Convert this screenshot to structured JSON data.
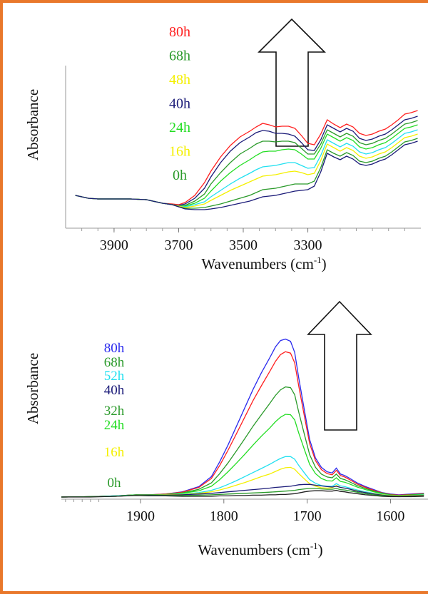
{
  "colors": {
    "border": "#e9782b",
    "red": "#ff2020",
    "green": "#2a9a2a",
    "yellow": "#f4f000",
    "navy": "#1a1a78",
    "lime": "#22dd22",
    "blue": "#2a2aee",
    "cyan": "#22e0f0",
    "dark": "#222222"
  },
  "chart_data": [
    {
      "type": "line",
      "ylabel": "Absorbance",
      "xlabel": "Wavenumbers (cm",
      "xlabel_sup": "-1",
      "xlabel_close": ")",
      "x_reversed": true,
      "xlim": [
        4050,
        2950
      ],
      "x_ticks": [
        3900,
        3700,
        3500,
        3300
      ],
      "x_tick_labels": [
        "3900",
        "3700",
        "3500",
        "3300"
      ],
      "legend": [
        {
          "label": "80h",
          "color": "#ff2020"
        },
        {
          "label": "68h",
          "color": "#2a9a2a"
        },
        {
          "label": "48h",
          "color": "#f4f000"
        },
        {
          "label": "40h",
          "color": "#1a1a78"
        },
        {
          "label": "24h",
          "color": "#22dd22"
        },
        {
          "label": "16h",
          "color": "#f4f000"
        },
        {
          "label": "0h",
          "color": "#2a9a2a"
        }
      ],
      "arrow": "up",
      "x": [
        4020,
        3980,
        3950,
        3900,
        3850,
        3800,
        3780,
        3750,
        3720,
        3700,
        3680,
        3650,
        3620,
        3600,
        3570,
        3540,
        3510,
        3480,
        3460,
        3440,
        3420,
        3400,
        3380,
        3360,
        3340,
        3320,
        3300,
        3280,
        3260,
        3240,
        3220,
        3200,
        3180,
        3160,
        3140,
        3120,
        3100,
        3080,
        3060,
        3040,
        3020,
        3000,
        2980,
        2960
      ],
      "series": [
        {
          "color": "#ff2020",
          "values": [
            0.66,
            0.62,
            0.61,
            0.61,
            0.61,
            0.6,
            0.58,
            0.55,
            0.54,
            0.53,
            0.56,
            0.66,
            0.84,
            1.0,
            1.2,
            1.36,
            1.48,
            1.56,
            1.62,
            1.67,
            1.65,
            1.62,
            1.63,
            1.63,
            1.6,
            1.5,
            1.39,
            1.37,
            1.52,
            1.72,
            1.66,
            1.61,
            1.66,
            1.62,
            1.53,
            1.5,
            1.52,
            1.56,
            1.59,
            1.65,
            1.72,
            1.8,
            1.82,
            1.85
          ]
        },
        {
          "color": "#1a1a78",
          "values": [
            0.66,
            0.62,
            0.61,
            0.61,
            0.61,
            0.6,
            0.58,
            0.55,
            0.53,
            0.52,
            0.54,
            0.62,
            0.76,
            0.92,
            1.12,
            1.28,
            1.4,
            1.48,
            1.54,
            1.57,
            1.56,
            1.53,
            1.53,
            1.52,
            1.49,
            1.4,
            1.3,
            1.29,
            1.44,
            1.65,
            1.6,
            1.55,
            1.6,
            1.56,
            1.46,
            1.43,
            1.45,
            1.49,
            1.52,
            1.58,
            1.65,
            1.72,
            1.74,
            1.77
          ]
        },
        {
          "color": "#2a9a2a",
          "values": [
            0.66,
            0.62,
            0.61,
            0.61,
            0.61,
            0.6,
            0.58,
            0.55,
            0.53,
            0.51,
            0.52,
            0.58,
            0.68,
            0.82,
            0.98,
            1.12,
            1.24,
            1.32,
            1.38,
            1.42,
            1.42,
            1.41,
            1.42,
            1.42,
            1.4,
            1.32,
            1.24,
            1.24,
            1.38,
            1.58,
            1.53,
            1.48,
            1.53,
            1.49,
            1.4,
            1.37,
            1.39,
            1.43,
            1.46,
            1.52,
            1.59,
            1.66,
            1.68,
            1.71
          ]
        },
        {
          "color": "#22dd22",
          "values": [
            0.66,
            0.62,
            0.61,
            0.61,
            0.61,
            0.6,
            0.58,
            0.55,
            0.53,
            0.51,
            0.51,
            0.55,
            0.62,
            0.72,
            0.86,
            0.98,
            1.08,
            1.16,
            1.22,
            1.27,
            1.28,
            1.28,
            1.3,
            1.31,
            1.3,
            1.24,
            1.17,
            1.17,
            1.32,
            1.52,
            1.47,
            1.42,
            1.47,
            1.43,
            1.34,
            1.31,
            1.33,
            1.37,
            1.4,
            1.46,
            1.53,
            1.6,
            1.62,
            1.65
          ]
        },
        {
          "color": "#22e0f0",
          "values": [
            0.66,
            0.62,
            0.61,
            0.61,
            0.61,
            0.6,
            0.58,
            0.55,
            0.53,
            0.51,
            0.5,
            0.53,
            0.57,
            0.64,
            0.73,
            0.82,
            0.9,
            0.97,
            1.02,
            1.06,
            1.07,
            1.08,
            1.1,
            1.12,
            1.12,
            1.08,
            1.04,
            1.05,
            1.22,
            1.44,
            1.39,
            1.34,
            1.39,
            1.35,
            1.27,
            1.24,
            1.26,
            1.3,
            1.33,
            1.39,
            1.46,
            1.53,
            1.55,
            1.58
          ]
        },
        {
          "color": "#f4f000",
          "values": [
            0.66,
            0.62,
            0.61,
            0.61,
            0.61,
            0.6,
            0.58,
            0.55,
            0.53,
            0.51,
            0.49,
            0.51,
            0.54,
            0.59,
            0.66,
            0.73,
            0.79,
            0.85,
            0.89,
            0.93,
            0.94,
            0.95,
            0.97,
            0.99,
            1.0,
            0.98,
            0.95,
            0.97,
            1.15,
            1.38,
            1.33,
            1.28,
            1.33,
            1.29,
            1.21,
            1.18,
            1.2,
            1.24,
            1.27,
            1.33,
            1.4,
            1.47,
            1.49,
            1.52
          ]
        },
        {
          "color": "#2a9a2a",
          "values": [
            0.66,
            0.62,
            0.61,
            0.61,
            0.61,
            0.6,
            0.58,
            0.55,
            0.53,
            0.5,
            0.48,
            0.48,
            0.49,
            0.51,
            0.54,
            0.58,
            0.62,
            0.66,
            0.7,
            0.74,
            0.75,
            0.76,
            0.78,
            0.8,
            0.82,
            0.82,
            0.82,
            0.86,
            1.05,
            1.3,
            1.25,
            1.21,
            1.26,
            1.22,
            1.14,
            1.12,
            1.14,
            1.18,
            1.21,
            1.27,
            1.34,
            1.41,
            1.43,
            1.46
          ]
        },
        {
          "color": "#1a1a78",
          "values": [
            0.66,
            0.62,
            0.61,
            0.61,
            0.61,
            0.6,
            0.58,
            0.55,
            0.53,
            0.5,
            0.47,
            0.46,
            0.46,
            0.47,
            0.49,
            0.52,
            0.55,
            0.58,
            0.61,
            0.64,
            0.65,
            0.66,
            0.68,
            0.7,
            0.72,
            0.73,
            0.74,
            0.79,
            0.99,
            1.25,
            1.2,
            1.16,
            1.21,
            1.17,
            1.1,
            1.08,
            1.1,
            1.14,
            1.17,
            1.23,
            1.3,
            1.37,
            1.39,
            1.42
          ]
        }
      ]
    },
    {
      "type": "line",
      "ylabel": "Absorbance",
      "xlabel": "Wavenumbers (cm",
      "xlabel_sup": "-1",
      "xlabel_close": ")",
      "x_reversed": true,
      "xlim": [
        1995,
        1555
      ],
      "x_ticks": [
        1900,
        1800,
        1700,
        1600
      ],
      "x_tick_labels": [
        "1900",
        "1800",
        "1700",
        "1600"
      ],
      "legend": [
        {
          "label": "80h",
          "color": "#2a2aee"
        },
        {
          "label": "68h",
          "color": "#2a9a2a"
        },
        {
          "label": "52h",
          "color": "#22e0f0"
        },
        {
          "label": "40h",
          "color": "#1a1a78"
        },
        {
          "label": "32h",
          "color": "#2a9a2a"
        },
        {
          "label": "24h",
          "color": "#22dd22"
        },
        {
          "label": "16h",
          "color": "#f4f000"
        },
        {
          "label": "0h",
          "color": "#2a9a2a"
        }
      ],
      "arrow": "up",
      "x": [
        1995,
        1960,
        1930,
        1905,
        1890,
        1870,
        1850,
        1830,
        1815,
        1805,
        1795,
        1785,
        1775,
        1765,
        1755,
        1745,
        1738,
        1732,
        1726,
        1720,
        1715,
        1710,
        1703,
        1697,
        1690,
        1683,
        1676,
        1670,
        1665,
        1660,
        1655,
        1650,
        1640,
        1630,
        1620,
        1610,
        1600,
        1590,
        1575,
        1560
      ],
      "series": [
        {
          "color": "#2a2aee",
          "values": [
            0.0,
            0.01,
            0.03,
            0.06,
            0.06,
            0.08,
            0.14,
            0.28,
            0.55,
            0.95,
            1.4,
            1.9,
            2.4,
            2.9,
            3.35,
            3.75,
            4.05,
            4.22,
            4.26,
            4.2,
            3.9,
            3.2,
            2.3,
            1.55,
            1.05,
            0.8,
            0.68,
            0.65,
            0.78,
            0.62,
            0.58,
            0.52,
            0.38,
            0.28,
            0.2,
            0.12,
            0.08,
            0.06,
            0.08,
            0.1
          ]
        },
        {
          "color": "#ff2020",
          "values": [
            0.0,
            0.01,
            0.03,
            0.06,
            0.06,
            0.08,
            0.13,
            0.26,
            0.5,
            0.85,
            1.26,
            1.7,
            2.15,
            2.6,
            3.0,
            3.38,
            3.66,
            3.84,
            3.92,
            3.88,
            3.62,
            2.98,
            2.14,
            1.44,
            0.98,
            0.74,
            0.63,
            0.6,
            0.72,
            0.58,
            0.54,
            0.48,
            0.35,
            0.26,
            0.18,
            0.11,
            0.07,
            0.05,
            0.07,
            0.09
          ]
        },
        {
          "color": "#2a9a2a",
          "values": [
            0.0,
            0.01,
            0.03,
            0.06,
            0.06,
            0.07,
            0.11,
            0.21,
            0.38,
            0.63,
            0.92,
            1.24,
            1.57,
            1.91,
            2.22,
            2.52,
            2.74,
            2.89,
            2.97,
            2.95,
            2.76,
            2.28,
            1.66,
            1.14,
            0.8,
            0.62,
            0.54,
            0.52,
            0.62,
            0.5,
            0.47,
            0.42,
            0.31,
            0.23,
            0.16,
            0.1,
            0.06,
            0.04,
            0.06,
            0.08
          ]
        },
        {
          "color": "#22dd22",
          "values": [
            0.0,
            0.01,
            0.03,
            0.06,
            0.06,
            0.07,
            0.1,
            0.17,
            0.29,
            0.47,
            0.68,
            0.91,
            1.15,
            1.4,
            1.64,
            1.86,
            2.03,
            2.15,
            2.23,
            2.22,
            2.08,
            1.72,
            1.26,
            0.88,
            0.63,
            0.5,
            0.44,
            0.43,
            0.52,
            0.42,
            0.4,
            0.36,
            0.27,
            0.2,
            0.14,
            0.09,
            0.05,
            0.04,
            0.05,
            0.07
          ]
        },
        {
          "color": "#22e0f0",
          "values": [
            0.0,
            0.01,
            0.03,
            0.05,
            0.05,
            0.06,
            0.08,
            0.12,
            0.18,
            0.25,
            0.34,
            0.44,
            0.55,
            0.66,
            0.77,
            0.88,
            0.97,
            1.04,
            1.09,
            1.09,
            1.02,
            0.85,
            0.64,
            0.47,
            0.37,
            0.31,
            0.29,
            0.29,
            0.36,
            0.3,
            0.28,
            0.25,
            0.19,
            0.14,
            0.1,
            0.07,
            0.04,
            0.03,
            0.04,
            0.06
          ]
        },
        {
          "color": "#f4f000",
          "values": [
            0.0,
            0.01,
            0.02,
            0.05,
            0.05,
            0.06,
            0.07,
            0.1,
            0.14,
            0.19,
            0.25,
            0.32,
            0.39,
            0.47,
            0.55,
            0.62,
            0.69,
            0.75,
            0.79,
            0.8,
            0.75,
            0.63,
            0.48,
            0.36,
            0.29,
            0.25,
            0.24,
            0.25,
            0.31,
            0.26,
            0.24,
            0.22,
            0.17,
            0.12,
            0.09,
            0.06,
            0.04,
            0.03,
            0.04,
            0.05
          ]
        },
        {
          "color": "#1a1a78",
          "values": [
            0.0,
            0.01,
            0.02,
            0.05,
            0.05,
            0.05,
            0.06,
            0.08,
            0.1,
            0.12,
            0.14,
            0.16,
            0.18,
            0.2,
            0.22,
            0.24,
            0.26,
            0.27,
            0.28,
            0.29,
            0.31,
            0.33,
            0.34,
            0.34,
            0.32,
            0.3,
            0.28,
            0.27,
            0.29,
            0.26,
            0.24,
            0.22,
            0.16,
            0.12,
            0.08,
            0.05,
            0.03,
            0.02,
            0.03,
            0.04
          ]
        },
        {
          "color": "#2a9a2a",
          "values": [
            0.0,
            0.01,
            0.02,
            0.05,
            0.04,
            0.04,
            0.04,
            0.05,
            0.06,
            0.07,
            0.08,
            0.09,
            0.1,
            0.11,
            0.12,
            0.13,
            0.14,
            0.15,
            0.16,
            0.17,
            0.18,
            0.2,
            0.22,
            0.23,
            0.23,
            0.22,
            0.21,
            0.21,
            0.23,
            0.2,
            0.19,
            0.17,
            0.13,
            0.09,
            0.06,
            0.04,
            0.02,
            0.01,
            0.02,
            0.03
          ]
        },
        {
          "color": "#222222",
          "values": [
            0.0,
            0.0,
            0.02,
            0.04,
            0.03,
            0.03,
            0.02,
            0.02,
            0.02,
            0.03,
            0.03,
            0.04,
            0.04,
            0.05,
            0.05,
            0.06,
            0.06,
            0.07,
            0.07,
            0.08,
            0.09,
            0.11,
            0.14,
            0.16,
            0.17,
            0.17,
            0.16,
            0.16,
            0.18,
            0.15,
            0.14,
            0.12,
            0.09,
            0.06,
            0.04,
            0.02,
            0.01,
            0.01,
            0.01,
            0.02
          ]
        }
      ]
    }
  ]
}
